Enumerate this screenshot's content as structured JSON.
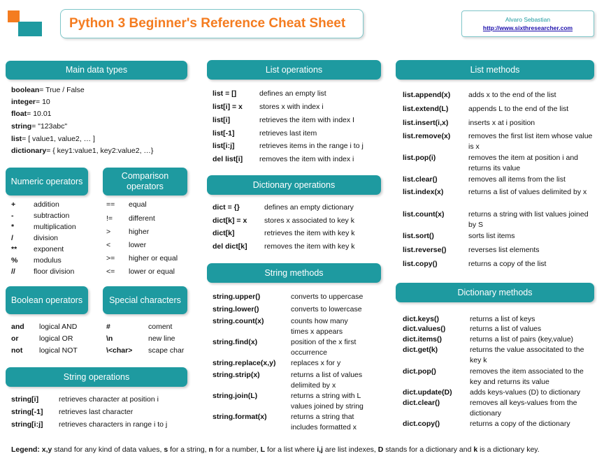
{
  "header": {
    "title": "Python 3 Beginner's Reference Cheat Sheet",
    "author": "Alvaro Sebastian",
    "url": "http://www.sixthresearcher.com"
  },
  "main_data_types": {
    "title": "Main data types",
    "items": [
      {
        "k": "boolean",
        "v": " = True / False"
      },
      {
        "k": "integer",
        "v": " = 10"
      },
      {
        "k": "float",
        "v": " = 10.01"
      },
      {
        "k": "string",
        "v": " = \"123abc\""
      },
      {
        "k": "list",
        "v": " = [ value1, value2, … ]"
      },
      {
        "k": "dictionary",
        "v": " = { key1:value1, key2:value2, …}"
      }
    ]
  },
  "numeric_operators": {
    "title": "Numeric operators",
    "items": [
      {
        "k": "+",
        "d": "addition"
      },
      {
        "k": "-",
        "d": "subtraction"
      },
      {
        "k": "*",
        "d": "multiplication"
      },
      {
        "k": "/",
        "d": "division"
      },
      {
        "k": "**",
        "d": "exponent"
      },
      {
        "k": "%",
        "d": "modulus"
      },
      {
        "k": "//",
        "d": "floor division"
      }
    ]
  },
  "comparison_operators": {
    "title": "Comparison operators",
    "items": [
      {
        "k": "==",
        "d": "equal"
      },
      {
        "k": "!=",
        "d": "different"
      },
      {
        "k": ">",
        "d": "higher"
      },
      {
        "k": "<",
        "d": "lower"
      },
      {
        "k": ">=",
        "d": "higher or equal"
      },
      {
        "k": "<=",
        "d": "lower or equal"
      }
    ]
  },
  "boolean_operators": {
    "title": "Boolean operators",
    "items": [
      {
        "k": "and",
        "d": "logical AND"
      },
      {
        "k": "or",
        "d": "logical OR"
      },
      {
        "k": "not",
        "d": "logical NOT"
      }
    ]
  },
  "special_characters": {
    "title": "Special characters",
    "items": [
      {
        "k": "#",
        "d": "coment"
      },
      {
        "k": "\\n",
        "d": "new line"
      },
      {
        "k": "\\<char>",
        "d": "scape char"
      }
    ]
  },
  "string_operations": {
    "title": "String operations",
    "items": [
      {
        "k": "string[i]",
        "d": "retrieves character at position i"
      },
      {
        "k": "string[-1]",
        "d": "retrieves last character"
      },
      {
        "k": "string[i:j]",
        "d": "retrieves characters in range i to j"
      }
    ]
  },
  "list_operations": {
    "title": "List operations",
    "items": [
      {
        "k": "list = []",
        "d": "defines an empty list"
      },
      {
        "k": "list[i] = x",
        "d": "stores x with index i"
      },
      {
        "k": "list[i]",
        "d": "retrieves the item with index I"
      },
      {
        "k": "list[-1]",
        "d": "retrieves last item"
      },
      {
        "k": "list[i:j]",
        "d": "retrieves items in the range i to j"
      },
      {
        "k": "del list[i]",
        "d": "removes the item with index i"
      }
    ]
  },
  "dictionary_operations": {
    "title": "Dictionary operations",
    "items": [
      {
        "k": "dict = {}",
        "d": "defines an empty dictionary"
      },
      {
        "k": "dict[k] = x",
        "d": "stores x associated to key k"
      },
      {
        "k": "dict[k]",
        "d": "retrieves the item with key k"
      },
      {
        "k": "del dict[k]",
        "d": "removes the item with key k"
      }
    ]
  },
  "string_methods": {
    "title": "String methods",
    "items": [
      {
        "k": "string.upper()",
        "d": "converts to uppercase"
      },
      {
        "k": "string.lower()",
        "d": "converts to lowercase"
      },
      {
        "k": "string.count(x)",
        "d": "counts how many times x appears"
      },
      {
        "k": "string.find(x)",
        "d": "position of the x first occurrence"
      },
      {
        "k": "string.replace(x,y)",
        "d": "replaces x for y"
      },
      {
        "k": "string.strip(x)",
        "d": "returns a list of values delimited by x"
      },
      {
        "k": "string.join(L)",
        "d": "returns a string with L values joined by string"
      },
      {
        "k": "string.format(x)",
        "d": "returns a string that includes formatted x"
      }
    ]
  },
  "list_methods": {
    "title": "List methods",
    "items": [
      {
        "k": "list.append(x)",
        "d": "adds x to the end of the list"
      },
      {
        "k": "list.extend(L)",
        "d": "appends L to the end of the list"
      },
      {
        "k": "list.insert(i,x)",
        "d": "inserts x at i position"
      },
      {
        "k": "list.remove(x)",
        "d": "removes the first list item whose value is x"
      },
      {
        "k": "list.pop(i)",
        "d": "removes the item at position i and returns its value"
      },
      {
        "k": "list.clear()",
        "d": "removes all items from the list"
      },
      {
        "k": "list.index(x)",
        "d": "returns a list of values delimited by x"
      },
      {
        "k": "list.count(x)",
        "d": "returns a string with list values joined by S"
      },
      {
        "k": "list.sort()",
        "d": "sorts list items"
      },
      {
        "k": "list.reverse()",
        "d": "reverses list elements"
      },
      {
        "k": "list.copy()",
        "d": "returns a copy of the list"
      }
    ]
  },
  "dictionary_methods": {
    "title": "Dictionary methods",
    "items": [
      {
        "k": "dict.keys()",
        "d": "returns a list of keys"
      },
      {
        "k": "dict.values()",
        "d": "returns a list of values"
      },
      {
        "k": "dict.items()",
        "d": "returns a list of pairs (key,value)"
      },
      {
        "k": "dict.get(k)",
        "d": "returns the value associtated to the key k"
      },
      {
        "k": "dict.pop()",
        "d": "removes the item associated to the key and returns its value"
      },
      {
        "k": "dict.update(D)",
        "d": "adds keys-values (D) to dictionary"
      },
      {
        "k": "dict.clear()",
        "d": "removes all keys-values from the dictionary"
      },
      {
        "k": "dict.copy()",
        "d": "returns a copy of the dictionary"
      }
    ]
  },
  "legend": {
    "label": "Legend:",
    "t1": "x,y",
    "t2": " stand for any kind of data values, ",
    "t3": "s",
    "t4": " for a string, ",
    "t5": "n",
    "t6": " for a number, ",
    "t7": "L",
    "t8": " for a list where ",
    "t9": "i,j",
    "t10": " are list indexes, ",
    "t11": "D",
    "t12": " stands for a dictionary and ",
    "t13": "k",
    "t14": " is a dictionary key."
  }
}
